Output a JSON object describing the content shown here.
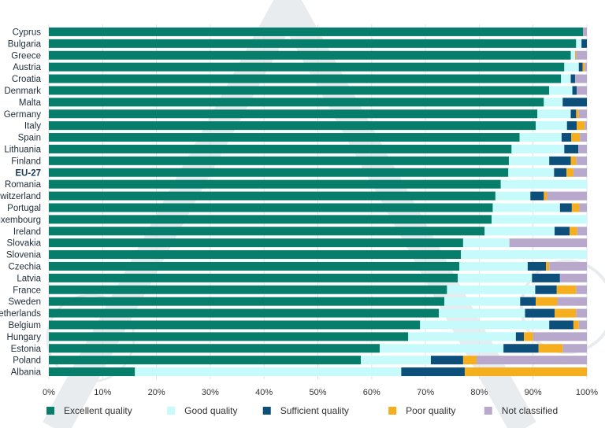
{
  "chart_data": {
    "type": "bar",
    "orientation": "horizontal",
    "stacked": true,
    "xlim": [
      0,
      100
    ],
    "x_ticks": [
      "0%",
      "10%",
      "20%",
      "30%",
      "40%",
      "50%",
      "60%",
      "70%",
      "80%",
      "90%",
      "100%"
    ],
    "grid": true,
    "legend_position": "bottom",
    "highlight_category": "EU-27",
    "categories": [
      "Cyprus",
      "Bulgaria",
      "Greece",
      "Austria",
      "Croatia",
      "Denmark",
      "Malta",
      "Germany",
      "Italy",
      "Spain",
      "Lithuania",
      "Finland",
      "EU-27",
      "Romania",
      "Switzerland",
      "Portugal",
      "Luxembourg",
      "Ireland",
      "Slovakia",
      "Slovenia",
      "Czechia",
      "Latvia",
      "France",
      "Sweden",
      "Netherlands",
      "Belgium",
      "Hungary",
      "Estonia",
      "Poland",
      "Albania"
    ],
    "series": [
      {
        "name": "Excellent quality",
        "color": "#077d6b",
        "values": [
          99.3,
          98.0,
          97.0,
          95.8,
          95.2,
          93.0,
          92.0,
          90.8,
          90.5,
          87.5,
          86.0,
          85.5,
          85.4,
          84.0,
          83.0,
          82.5,
          82.3,
          81.0,
          77.0,
          76.6,
          76.3,
          76.0,
          74.0,
          73.5,
          72.5,
          69.0,
          66.8,
          61.5,
          58.0,
          16.0
        ]
      },
      {
        "name": "Good quality",
        "color": "#c7fafa",
        "values": [
          0.0,
          1.0,
          0.8,
          2.7,
          1.8,
          4.3,
          3.5,
          6.2,
          5.8,
          7.8,
          9.8,
          7.5,
          8.5,
          16.0,
          6.5,
          12.5,
          17.7,
          13.0,
          8.6,
          23.4,
          12.7,
          13.8,
          16.4,
          14.1,
          16.0,
          24.0,
          20.0,
          23.0,
          13.0,
          49.5
        ]
      },
      {
        "name": "Sufficient quality",
        "color": "#0d4f7b",
        "values": [
          0.0,
          1.0,
          0.0,
          0.7,
          0.8,
          0.8,
          4.5,
          1.0,
          1.8,
          1.8,
          2.6,
          4.0,
          2.3,
          0.0,
          2.5,
          2.2,
          0.0,
          2.8,
          0.0,
          0.0,
          3.4,
          5.2,
          4.0,
          2.9,
          5.5,
          4.5,
          1.5,
          6.5,
          6.0,
          11.8
        ]
      },
      {
        "name": "Poor quality",
        "color": "#f5ae1e",
        "values": [
          0.0,
          0.0,
          0.2,
          0.4,
          0.0,
          0.0,
          0.0,
          0.5,
          1.5,
          1.6,
          0.0,
          1.0,
          1.3,
          0.0,
          0.6,
          1.4,
          0.0,
          1.4,
          0.0,
          0.0,
          0.6,
          0.0,
          3.6,
          4.0,
          4.0,
          1.0,
          1.7,
          4.5,
          2.5,
          22.7
        ]
      },
      {
        "name": "Not classified",
        "color": "#b8a8cc",
        "values": [
          0.7,
          0.0,
          2.0,
          0.4,
          2.2,
          1.9,
          0.0,
          1.5,
          0.4,
          1.3,
          1.6,
          2.0,
          2.5,
          0.0,
          7.4,
          1.4,
          0.0,
          1.8,
          14.4,
          0.0,
          7.0,
          5.0,
          2.0,
          5.5,
          2.0,
          1.5,
          10.0,
          4.5,
          20.5,
          0.0
        ]
      }
    ]
  }
}
